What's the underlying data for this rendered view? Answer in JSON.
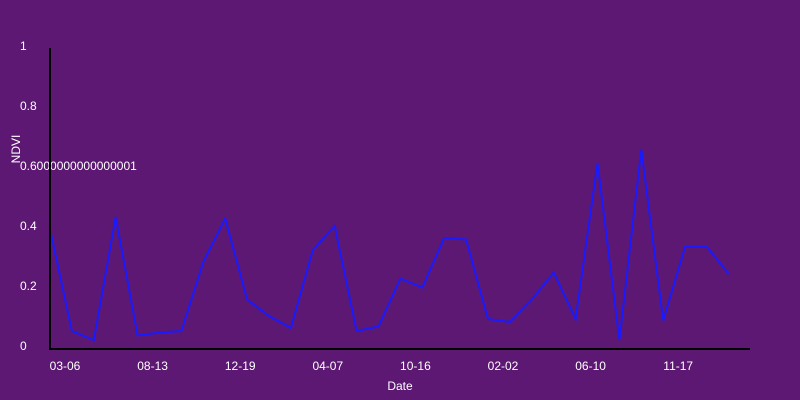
{
  "chart_data": {
    "type": "line",
    "title": "",
    "xlabel": "Date",
    "ylabel": "NDVI",
    "ylim": [
      0,
      1
    ],
    "y_ticks": [
      "0",
      "0.2",
      "0.4",
      "0.6000000000000001",
      "0.8",
      "1"
    ],
    "x_tick_labels": [
      "03-06",
      "08-13",
      "12-19",
      "04-07",
      "10-16",
      "02-02",
      "06-10",
      "11-17"
    ],
    "grid": false,
    "series": [
      {
        "color": "#1a1aff",
        "values": [
          0.39,
          0.05,
          0.02,
          0.43,
          0.035,
          0.045,
          0.05,
          0.28,
          0.425,
          0.155,
          0.1,
          0.06,
          0.32,
          0.4,
          0.05,
          0.065,
          0.225,
          0.195,
          0.36,
          0.355,
          0.09,
          0.08,
          0.155,
          0.245,
          0.09,
          0.61,
          0.02,
          0.655,
          0.085,
          0.33,
          0.33,
          0.24
        ]
      }
    ]
  },
  "colors": {
    "background": "#5c1872",
    "axis": "#000000",
    "text": "#ffffff",
    "line": "#1a1aff"
  }
}
